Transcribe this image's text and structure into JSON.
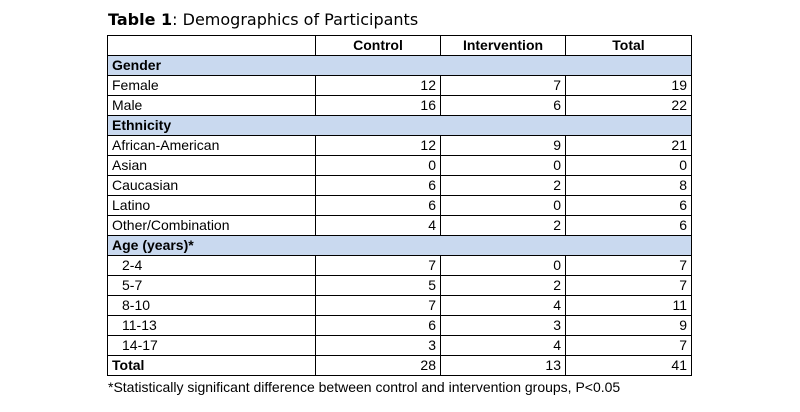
{
  "caption": {
    "label": "Table 1",
    "text": ": Demographics of Participants"
  },
  "headers": [
    "",
    "Control",
    "Intervention",
    "Total"
  ],
  "sections": [
    {
      "title": "Gender",
      "rows": [
        {
          "label": "Female",
          "values": [
            "12",
            "7",
            "19"
          ]
        },
        {
          "label": "Male",
          "values": [
            "16",
            "6",
            "22"
          ]
        }
      ]
    },
    {
      "title": "Ethnicity",
      "rows": [
        {
          "label": "African-American",
          "values": [
            "12",
            "9",
            "21"
          ]
        },
        {
          "label": "Asian",
          "values": [
            "0",
            "0",
            "0"
          ]
        },
        {
          "label": "Caucasian",
          "values": [
            "6",
            "2",
            "8"
          ]
        },
        {
          "label": "Latino",
          "values": [
            "6",
            "0",
            "6"
          ]
        },
        {
          "label": "Other/Combination",
          "values": [
            "4",
            "2",
            "6"
          ]
        }
      ]
    },
    {
      "title": "Age (years)*",
      "rows": [
        {
          "label": "2-4",
          "values": [
            "7",
            "0",
            "7"
          ]
        },
        {
          "label": "5-7",
          "values": [
            "5",
            "2",
            "7"
          ]
        },
        {
          "label": "8-10",
          "values": [
            "7",
            "4",
            "11"
          ]
        },
        {
          "label": "11-13",
          "values": [
            "6",
            "3",
            "9"
          ]
        },
        {
          "label": "14-17",
          "values": [
            "3",
            "4",
            "7"
          ]
        }
      ]
    }
  ],
  "total": {
    "label": "Total",
    "values": [
      "28",
      "13",
      "41"
    ]
  },
  "footnote": "*Statistically significant difference between control and intervention groups, P<0.05",
  "colors": {
    "section_header_bg": "#c9d9ef",
    "border": "#000000"
  }
}
